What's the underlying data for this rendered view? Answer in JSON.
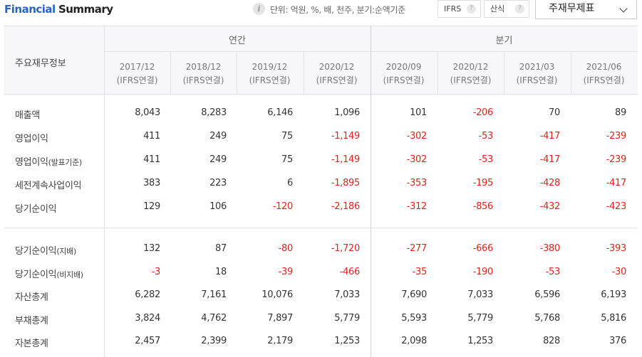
{
  "header": {
    "title_part1": "Financial",
    "title_part2": "Summary",
    "info_glyph": "i",
    "unit_text": "단위: 억원, %, 배, 천주, 분기:순액기준",
    "ifrs_label": "IFRS",
    "formula_label": "산식",
    "help_glyph": "?",
    "statement_select": "주재무제표"
  },
  "table": {
    "row_header_label": "주요재무정보",
    "group_annual": "연간",
    "group_quarterly": "분기",
    "columns": [
      {
        "period": "2017/12",
        "basis": "(IFRS연결)"
      },
      {
        "period": "2018/12",
        "basis": "(IFRS연결)"
      },
      {
        "period": "2019/12",
        "basis": "(IFRS연결)"
      },
      {
        "period": "2020/12",
        "basis": "(IFRS연결)"
      },
      {
        "period": "2020/09",
        "basis": "(IFRS연결)"
      },
      {
        "period": "2020/12",
        "basis": "(IFRS연결)"
      },
      {
        "period": "2021/03",
        "basis": "(IFRS연결)"
      },
      {
        "period": "2021/06",
        "basis": "(IFRS연결)"
      }
    ],
    "rows": [
      {
        "label": "매출액",
        "sub": "",
        "values": [
          "8,043",
          "8,283",
          "6,146",
          "1,096",
          "101",
          "-206",
          "70",
          "89"
        ]
      },
      {
        "label": "영업이익",
        "sub": "",
        "values": [
          "411",
          "249",
          "75",
          "-1,149",
          "-302",
          "-53",
          "-417",
          "-239"
        ]
      },
      {
        "label": "영업이익",
        "sub": "(발표기준)",
        "values": [
          "411",
          "249",
          "75",
          "-1,149",
          "-302",
          "-53",
          "-417",
          "-239"
        ]
      },
      {
        "label": "세전계속사업이익",
        "sub": "",
        "values": [
          "383",
          "223",
          "6",
          "-1,895",
          "-353",
          "-195",
          "-428",
          "-417"
        ]
      },
      {
        "label": "당기순이익",
        "sub": "",
        "values": [
          "129",
          "106",
          "-120",
          "-2,186",
          "-312",
          "-856",
          "-432",
          "-423"
        ]
      },
      {
        "label": "당기순이익",
        "sub": "(지배)",
        "values": [
          "132",
          "87",
          "-80",
          "-1,720",
          "-277",
          "-666",
          "-380",
          "-393"
        ]
      },
      {
        "label": "당기순이익",
        "sub": "(비지배)",
        "values": [
          "-3",
          "18",
          "-39",
          "-466",
          "-35",
          "-190",
          "-53",
          "-30"
        ]
      },
      {
        "label": "자산총계",
        "sub": "",
        "values": [
          "6,282",
          "7,161",
          "10,076",
          "7,033",
          "7,690",
          "7,033",
          "6,596",
          "6,193"
        ]
      },
      {
        "label": "부채총계",
        "sub": "",
        "values": [
          "3,824",
          "4,762",
          "7,897",
          "5,779",
          "5,593",
          "5,779",
          "5,768",
          "5,816"
        ]
      },
      {
        "label": "자본총계",
        "sub": "",
        "values": [
          "2,457",
          "2,399",
          "2,179",
          "1,253",
          "2,098",
          "1,253",
          "828",
          "376"
        ]
      }
    ]
  },
  "colors": {
    "title_blue": "#2a63c9",
    "negative_red": "#e3221c",
    "header_bg": "#f7f7f9"
  }
}
